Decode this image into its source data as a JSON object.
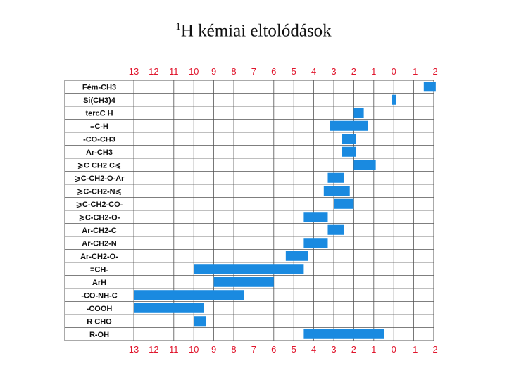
{
  "title": {
    "sup": "1",
    "text": "H kémiai eltolódások"
  },
  "chart_data": {
    "type": "bar",
    "orientation": "horizontal-range",
    "xlabel": "",
    "ylabel": "",
    "xlim": [
      13,
      -2
    ],
    "x_ticks": [
      "13",
      "12",
      "11",
      "10",
      "9",
      "8",
      "7",
      "6",
      "5",
      "4",
      "3",
      "2",
      "1",
      "0",
      "-1",
      "-2"
    ],
    "grid": true,
    "bar_color": "#1a8ae0",
    "tick_color": "#e0142b",
    "rows": [
      {
        "label": "Fém-CH3",
        "range": [
          -1.5,
          -2.1
        ]
      },
      {
        "label": "Si(CH3)4",
        "range": [
          0.1,
          -0.1
        ]
      },
      {
        "label": "tercC H",
        "range": [
          2.0,
          1.5
        ]
      },
      {
        "label": "≡C-H",
        "range": [
          3.2,
          1.3
        ]
      },
      {
        "label": "-CO-CH3",
        "range": [
          2.6,
          1.9
        ]
      },
      {
        "label": "Ar-CH3",
        "range": [
          2.6,
          1.9
        ]
      },
      {
        "label": "⩾C CH2 C⩽",
        "range": [
          2.0,
          0.9
        ]
      },
      {
        "label": "⩾C-CH2-O-Ar",
        "range": [
          3.3,
          2.5
        ]
      },
      {
        "label": "⩾C-CH2-N⩽",
        "range": [
          3.5,
          2.2
        ]
      },
      {
        "label": "⩾C-CH2-CO-",
        "range": [
          3.0,
          2.0
        ]
      },
      {
        "label": "⩾C-CH2-O-",
        "range": [
          4.5,
          3.3
        ]
      },
      {
        "label": "Ar-CH2-C",
        "range": [
          3.3,
          2.5
        ]
      },
      {
        "label": "Ar-CH2-N",
        "range": [
          4.5,
          3.3
        ]
      },
      {
        "label": "Ar-CH2-O-",
        "range": [
          5.4,
          4.3
        ]
      },
      {
        "label": "=CH-",
        "range": [
          10.0,
          4.5
        ]
      },
      {
        "label": "ArH",
        "range": [
          9.0,
          6.0
        ]
      },
      {
        "label": "-CO-NH-C",
        "range": [
          13.0,
          7.5
        ]
      },
      {
        "label": "-COOH",
        "range": [
          13.0,
          9.5
        ]
      },
      {
        "label": "R CHO",
        "range": [
          10.0,
          9.4
        ]
      },
      {
        "label": "R-OH",
        "range": [
          4.5,
          0.5
        ]
      }
    ]
  }
}
